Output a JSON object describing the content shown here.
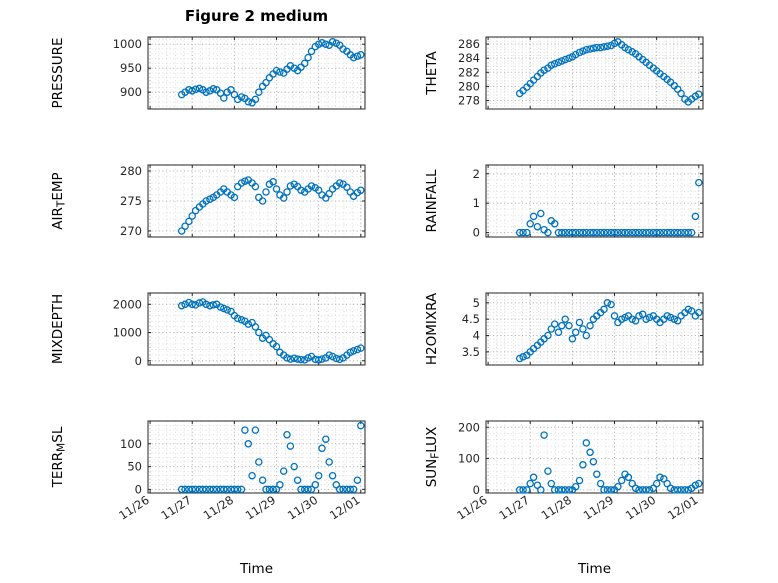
{
  "figure": {
    "title": "Figure 2 medium"
  },
  "chart_data": {
    "type": "scatter",
    "title": "Figure 2 medium",
    "xlabel": "Time",
    "marker_color": "#0072BD",
    "grid": "on-dotted",
    "x_tick_labels": [
      "11/26",
      "11/27",
      "11/28",
      "11/29",
      "11/30",
      "12/01"
    ],
    "x_ticks": [
      0,
      1,
      2,
      3,
      4,
      5
    ],
    "xlim": [
      -0.05,
      5.1
    ],
    "t": [
      0.75,
      0.83,
      0.92,
      1.0,
      1.08,
      1.17,
      1.25,
      1.33,
      1.42,
      1.5,
      1.58,
      1.67,
      1.75,
      1.83,
      1.92,
      2.0,
      2.08,
      2.17,
      2.25,
      2.33,
      2.42,
      2.5,
      2.58,
      2.67,
      2.75,
      2.83,
      2.92,
      3.0,
      3.08,
      3.17,
      3.25,
      3.33,
      3.42,
      3.5,
      3.58,
      3.67,
      3.75,
      3.83,
      3.92,
      4.0,
      4.08,
      4.17,
      4.25,
      4.33,
      4.42,
      4.5,
      4.58,
      4.67,
      4.75,
      4.83,
      4.92,
      5.0
    ],
    "subplots": [
      {
        "label": "PRESSURE",
        "row": 0,
        "col": 0,
        "yticks": [
          900,
          950,
          1000
        ],
        "ytick_labels": [
          "900",
          "950",
          "1000"
        ],
        "ylim": [
          865,
          1015
        ],
        "values": [
          895,
          900,
          905,
          903,
          906,
          908,
          905,
          900,
          903,
          907,
          905,
          898,
          888,
          900,
          905,
          895,
          885,
          890,
          887,
          880,
          878,
          885,
          900,
          912,
          920,
          930,
          938,
          945,
          942,
          940,
          948,
          955,
          950,
          945,
          952,
          960,
          972,
          985,
          995,
          1000,
          1003,
          1000,
          998,
          1005,
          1002,
          998,
          990,
          985,
          978,
          972,
          975,
          978
        ]
      },
      {
        "label": "THETA",
        "row": 0,
        "col": 1,
        "yticks": [
          278,
          280,
          282,
          284,
          286
        ],
        "ytick_labels": [
          "278",
          "280",
          "282",
          "284",
          "286"
        ],
        "ylim": [
          276.8,
          287
        ],
        "values": [
          279.0,
          279.4,
          279.9,
          280.4,
          280.9,
          281.4,
          281.9,
          282.3,
          282.6,
          283.0,
          283.2,
          283.4,
          283.6,
          283.8,
          284.0,
          284.2,
          284.5,
          284.8,
          285.0,
          285.2,
          285.3,
          285.4,
          285.5,
          285.5,
          285.6,
          285.7,
          285.8,
          286.1,
          286.3,
          285.9,
          285.5,
          285.2,
          284.9,
          284.6,
          284.2,
          283.8,
          283.4,
          283.0,
          282.6,
          282.2,
          281.8,
          281.4,
          281.0,
          280.6,
          280.1,
          279.6,
          279.0,
          278.2,
          277.8,
          278.2,
          278.6,
          278.9
        ]
      },
      {
        "label": "AIR_TEMP",
        "row": 1,
        "col": 0,
        "yticks": [
          270,
          275,
          280
        ],
        "ytick_labels": [
          "270",
          "275",
          "280"
        ],
        "ylim": [
          269,
          281
        ],
        "values": [
          270.0,
          270.8,
          271.6,
          272.5,
          273.4,
          274.0,
          274.5,
          275.0,
          275.3,
          275.6,
          276.0,
          276.5,
          277.0,
          276.5,
          276.0,
          275.6,
          277.4,
          278.0,
          278.3,
          278.5,
          278.0,
          277.4,
          275.6,
          275.0,
          276.5,
          277.8,
          278.2,
          277.0,
          276.0,
          275.5,
          276.5,
          277.5,
          277.8,
          277.4,
          276.8,
          276.5,
          277.0,
          277.5,
          277.2,
          276.8,
          276.0,
          275.5,
          276.2,
          277.0,
          277.5,
          278.0,
          277.8,
          277.3,
          276.5,
          275.8,
          276.4,
          276.8
        ]
      },
      {
        "label": "RAINFALL",
        "row": 1,
        "col": 1,
        "yticks": [
          0,
          1,
          2
        ],
        "ytick_labels": [
          "0",
          "1",
          "2"
        ],
        "ylim": [
          -0.15,
          2.3
        ],
        "values": [
          0,
          0,
          0,
          0.3,
          0.55,
          0.2,
          0.65,
          0.1,
          0,
          0.4,
          0.3,
          0,
          0,
          0,
          0,
          0,
          0,
          0,
          0,
          0,
          0,
          0,
          0,
          0,
          0,
          0,
          0,
          0,
          0,
          0,
          0,
          0,
          0,
          0,
          0,
          0,
          0,
          0,
          0,
          0,
          0,
          0,
          0,
          0,
          0,
          0,
          0,
          0,
          0,
          0,
          0.55,
          1.7
        ]
      },
      {
        "label": "MIXDEPTH",
        "row": 2,
        "col": 0,
        "yticks": [
          0,
          1000,
          2000
        ],
        "ytick_labels": [
          "0",
          "1000",
          "2000"
        ],
        "ylim": [
          -150,
          2400
        ],
        "values": [
          1950,
          2000,
          2060,
          2000,
          1980,
          2050,
          2080,
          2000,
          1950,
          1980,
          2000,
          1900,
          1850,
          1800,
          1750,
          1600,
          1500,
          1450,
          1400,
          1300,
          1350,
          1200,
          1000,
          800,
          900,
          750,
          600,
          500,
          300,
          200,
          100,
          60,
          90,
          60,
          40,
          30,
          100,
          150,
          50,
          30,
          60,
          100,
          200,
          150,
          80,
          50,
          100,
          200,
          300,
          350,
          400,
          450
        ]
      },
      {
        "label": "H2OMIXRA",
        "row": 2,
        "col": 1,
        "yticks": [
          3.5,
          4,
          4.5,
          5
        ],
        "ytick_labels": [
          "3.5",
          "4",
          "4.5",
          "5"
        ],
        "ylim": [
          3.1,
          5.3
        ],
        "values": [
          3.3,
          3.35,
          3.4,
          3.5,
          3.6,
          3.7,
          3.8,
          3.9,
          4.0,
          4.2,
          4.35,
          4.1,
          4.3,
          4.5,
          4.3,
          3.9,
          4.1,
          4.4,
          4.2,
          4.0,
          4.3,
          4.5,
          4.6,
          4.7,
          4.8,
          5.0,
          4.95,
          4.6,
          4.4,
          4.5,
          4.55,
          4.6,
          4.5,
          4.45,
          4.6,
          4.65,
          4.5,
          4.55,
          4.6,
          4.5,
          4.4,
          4.5,
          4.6,
          4.55,
          4.5,
          4.45,
          4.6,
          4.7,
          4.8,
          4.75,
          4.6,
          4.7
        ]
      },
      {
        "label": "TERR_MSL",
        "row": 3,
        "col": 0,
        "yticks": [
          0,
          50,
          100
        ],
        "ytick_labels": [
          "0",
          "50",
          "100"
        ],
        "ylim": [
          -8,
          150
        ],
        "values": [
          0,
          0,
          0,
          0,
          0,
          0,
          0,
          0,
          0,
          0,
          0,
          0,
          0,
          0,
          0,
          0,
          0,
          0,
          130,
          100,
          30,
          130,
          60,
          20,
          0,
          0,
          0,
          0,
          10,
          40,
          120,
          95,
          50,
          20,
          0,
          0,
          0,
          0,
          10,
          30,
          90,
          110,
          60,
          30,
          10,
          0,
          0,
          0,
          0,
          0,
          20,
          140
        ]
      },
      {
        "label": "SUN_FLUX",
        "row": 3,
        "col": 1,
        "yticks": [
          0,
          100,
          200
        ],
        "ytick_labels": [
          "0",
          "100",
          "200"
        ],
        "ylim": [
          -10,
          220
        ],
        "values": [
          0,
          0,
          0,
          20,
          40,
          15,
          0,
          175,
          60,
          20,
          0,
          0,
          0,
          0,
          0,
          0,
          10,
          30,
          80,
          150,
          120,
          90,
          50,
          20,
          0,
          0,
          0,
          0,
          10,
          30,
          50,
          40,
          20,
          5,
          0,
          0,
          0,
          0,
          5,
          20,
          40,
          35,
          20,
          5,
          0,
          0,
          0,
          0,
          0,
          5,
          15,
          20
        ]
      }
    ]
  }
}
